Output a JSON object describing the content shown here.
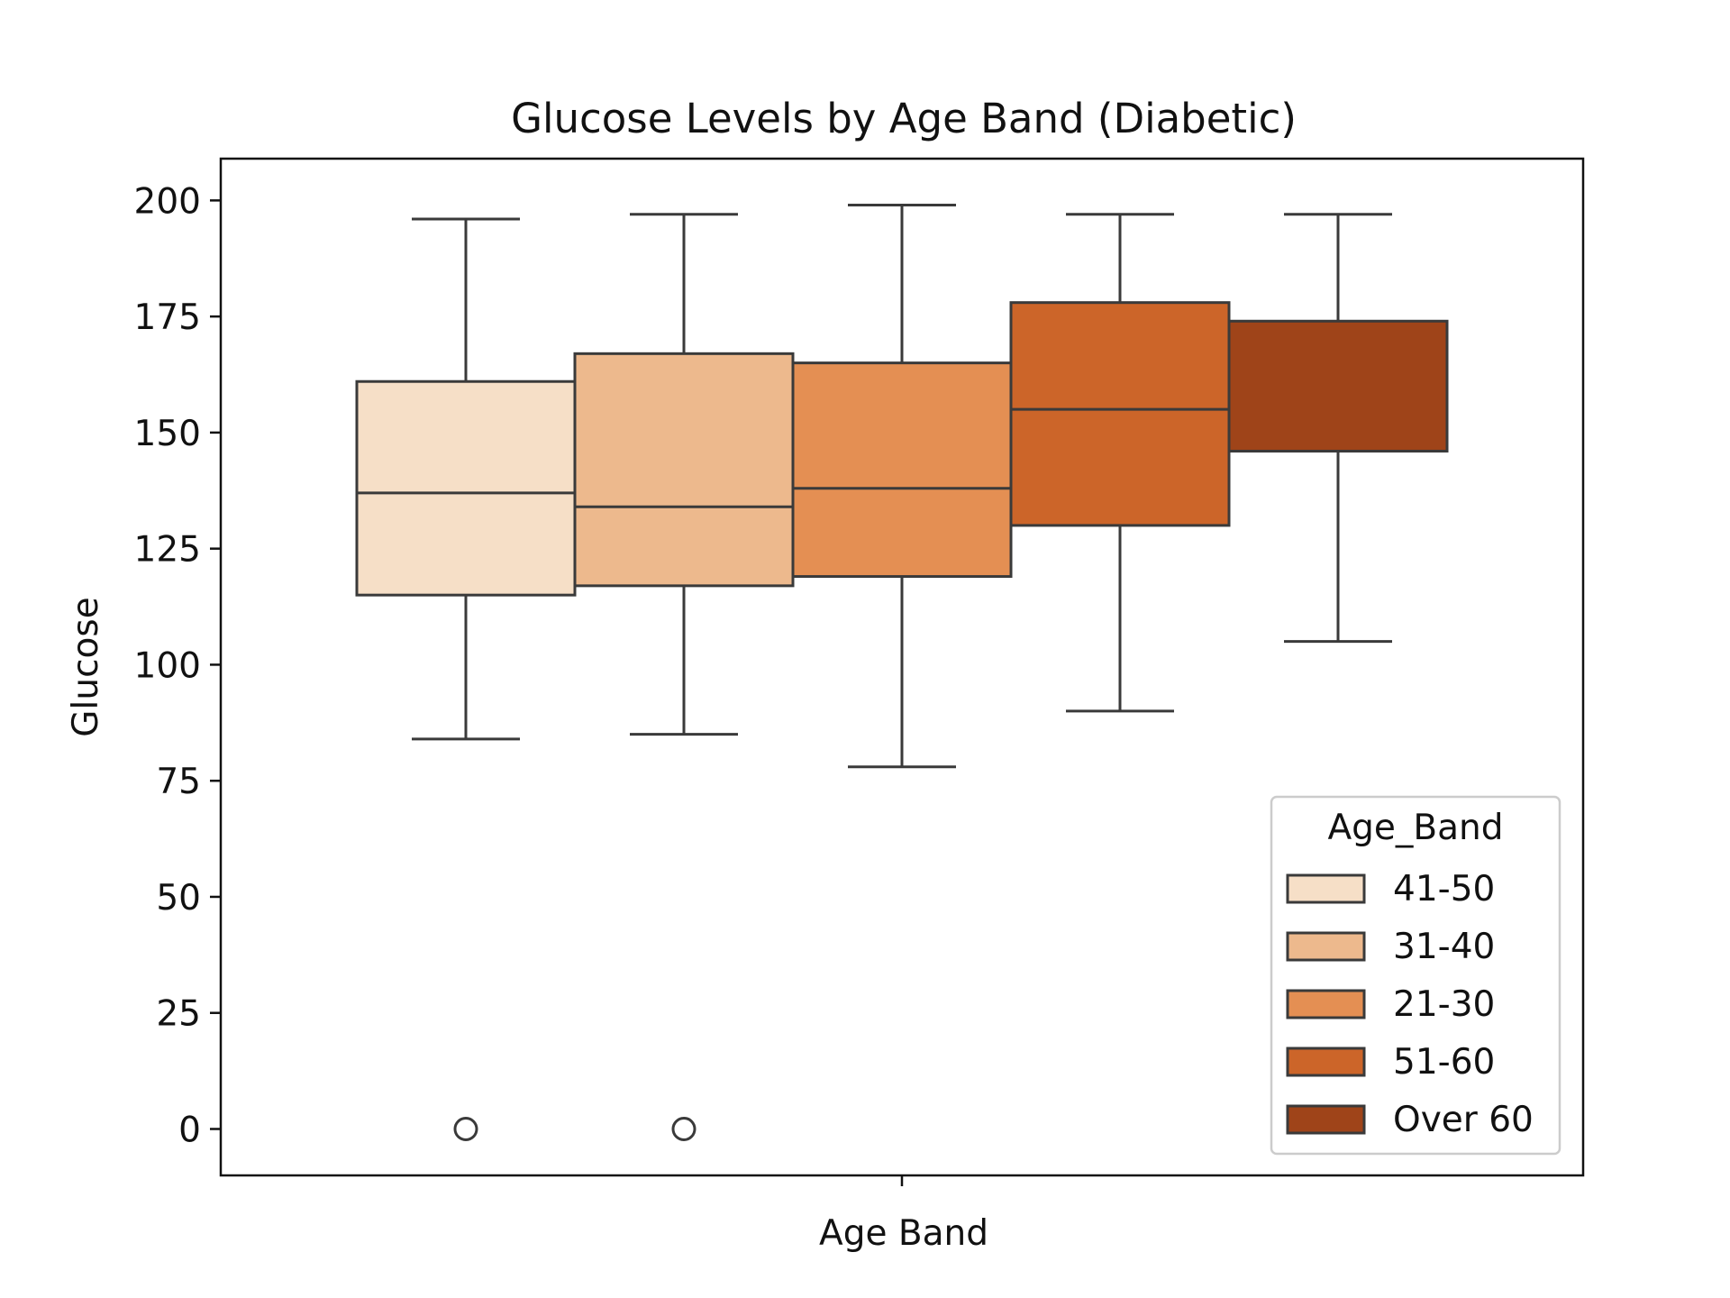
{
  "chart_data": {
    "type": "box",
    "title": "Glucose Levels by Age Band (Diabetic)",
    "xlabel": "Age Band",
    "ylabel": "Glucose",
    "ylim": [
      -10,
      209
    ],
    "yticks": [
      0,
      25,
      50,
      75,
      100,
      125,
      150,
      175,
      200
    ],
    "xticks": [
      ""
    ],
    "grid": false,
    "legend": {
      "title": "Age_Band",
      "placement": "lower-right"
    },
    "series": [
      {
        "name": "41-50",
        "color": "#f6dfc7",
        "whisker_low": 84,
        "q1": 115,
        "median": 137,
        "q3": 161,
        "whisker_high": 196,
        "outliers": [
          0
        ]
      },
      {
        "name": "31-40",
        "color": "#edb98d",
        "whisker_low": 85,
        "q1": 117,
        "median": 134,
        "q3": 167,
        "whisker_high": 197,
        "outliers": [
          0
        ]
      },
      {
        "name": "21-30",
        "color": "#e48f53",
        "whisker_low": 78,
        "q1": 119,
        "median": 138,
        "q3": 165,
        "whisker_high": 199,
        "outliers": []
      },
      {
        "name": "51-60",
        "color": "#cc6529",
        "whisker_low": 90,
        "q1": 130,
        "median": 155,
        "q3": 178,
        "whisker_high": 197,
        "outliers": []
      },
      {
        "name": "Over 60",
        "color": "#9f4419",
        "whisker_low": 105,
        "q1": 146,
        "median": 146,
        "q3": 174,
        "whisker_high": 197,
        "outliers": []
      }
    ]
  }
}
